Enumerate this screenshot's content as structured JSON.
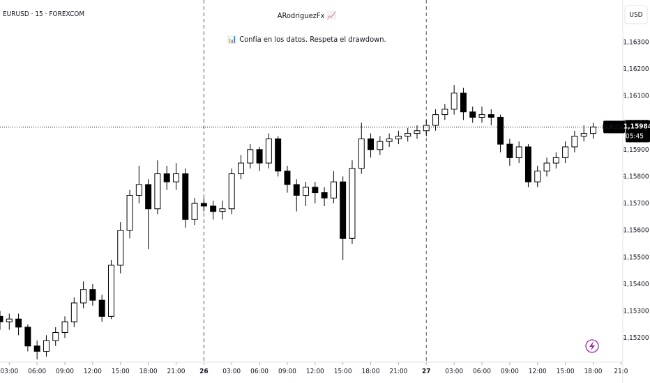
{
  "chart_data": {
    "type": "candlestick",
    "symbol": "EURUSD · 15 · FOREXCOM",
    "title": "ARodriguezFx 📈",
    "subtitle": "📊 Confía en los datos. Respeta el drawdown.",
    "currency": "USD",
    "last_price": {
      "value": 1.15984,
      "label": "1,15984",
      "name": "EURUSD",
      "countdown": "05:45"
    },
    "up_color": "#ffffff",
    "down_color": "#000000",
    "x": [
      2,
      3,
      4,
      5,
      6,
      7,
      8,
      9,
      10,
      11,
      12,
      13,
      14,
      15,
      16,
      17,
      18,
      19,
      20,
      21,
      22,
      23,
      24,
      25,
      26,
      27,
      28,
      29,
      30,
      31,
      32,
      33,
      34,
      35,
      36,
      37,
      38,
      39,
      40,
      41,
      42,
      43,
      44,
      45,
      46,
      47,
      48,
      49,
      50,
      51,
      52,
      53,
      54,
      55,
      56,
      57,
      58,
      59,
      60,
      61,
      62,
      63,
      64,
      65,
      66
    ],
    "open": [
      1.1528,
      1.1526,
      1.1527,
      1.1524,
      1.1517,
      1.1515,
      1.1519,
      1.1522,
      1.1526,
      1.1533,
      1.1538,
      1.1534,
      1.1528,
      1.1547,
      1.156,
      1.1573,
      1.1577,
      1.1568,
      1.1581,
      1.1578,
      1.1581,
      1.1564,
      1.157,
      1.1569,
      1.1567,
      1.1568,
      1.1581,
      1.1585,
      1.159,
      1.1585,
      1.1594,
      1.1582,
      1.1577,
      1.1573,
      1.1576,
      1.1574,
      1.1572,
      1.1578,
      1.1557,
      1.1583,
      1.1594,
      1.159,
      1.1593,
      1.1594,
      1.1595,
      1.1596,
      1.1597,
      1.1599,
      1.1603,
      1.1605,
      1.1611,
      1.1604,
      1.1602,
      1.1603,
      1.1602,
      1.1592,
      1.1587,
      1.1591,
      1.1578,
      1.1582,
      1.1585,
      1.1587,
      1.1591,
      1.1595,
      1.1596
    ],
    "high": [
      1.153,
      1.1529,
      1.1529,
      1.1525,
      1.1519,
      1.1521,
      1.1524,
      1.1528,
      1.1535,
      1.1541,
      1.154,
      1.1536,
      1.1549,
      1.1563,
      1.1575,
      1.1584,
      1.1579,
      1.1586,
      1.1584,
      1.1585,
      1.1583,
      1.1572,
      1.1572,
      1.1571,
      1.1571,
      1.1583,
      1.1588,
      1.1592,
      1.1591,
      1.1596,
      1.1595,
      1.1584,
      1.1579,
      1.1578,
      1.1578,
      1.1576,
      1.1582,
      1.158,
      1.1586,
      1.16,
      1.1596,
      1.1595,
      1.1596,
      1.1597,
      1.1598,
      1.1599,
      1.1601,
      1.1605,
      1.1607,
      1.1614,
      1.1613,
      1.1606,
      1.1606,
      1.1605,
      1.1603,
      1.1594,
      1.1593,
      1.1592,
      1.1584,
      1.1587,
      1.1589,
      1.1593,
      1.1597,
      1.1599,
      1.16
    ],
    "low": [
      1.1523,
      1.1523,
      1.1521,
      1.1515,
      1.1512,
      1.1513,
      1.1517,
      1.152,
      1.1524,
      1.1531,
      1.1532,
      1.1526,
      1.1527,
      1.1544,
      1.1557,
      1.157,
      1.1553,
      1.1566,
      1.1575,
      1.1575,
      1.1561,
      1.1562,
      1.1567,
      1.1564,
      1.1564,
      1.1566,
      1.1579,
      1.1583,
      1.1582,
      1.1583,
      1.158,
      1.1574,
      1.1567,
      1.1569,
      1.157,
      1.1569,
      1.157,
      1.1549,
      1.1555,
      1.1581,
      1.1587,
      1.1588,
      1.1591,
      1.1592,
      1.1593,
      1.1594,
      1.1595,
      1.1597,
      1.1601,
      1.1603,
      1.1601,
      1.16,
      1.16,
      1.1599,
      1.1589,
      1.1584,
      1.1585,
      1.1576,
      1.1576,
      1.158,
      1.1583,
      1.1585,
      1.1589,
      1.1593,
      1.1594
    ],
    "close": [
      1.1526,
      1.1527,
      1.1524,
      1.1517,
      1.1515,
      1.1519,
      1.1522,
      1.1526,
      1.1533,
      1.1538,
      1.1534,
      1.1528,
      1.1547,
      1.156,
      1.1573,
      1.1577,
      1.1568,
      1.1581,
      1.1578,
      1.1581,
      1.1564,
      1.157,
      1.1569,
      1.1567,
      1.1568,
      1.1581,
      1.1585,
      1.159,
      1.1585,
      1.1594,
      1.1582,
      1.1577,
      1.1573,
      1.1576,
      1.1574,
      1.1572,
      1.1578,
      1.1557,
      1.1583,
      1.1594,
      1.159,
      1.1593,
      1.1594,
      1.1595,
      1.1596,
      1.1597,
      1.1599,
      1.1603,
      1.1605,
      1.1611,
      1.1604,
      1.1602,
      1.1603,
      1.1602,
      1.1592,
      1.1587,
      1.1591,
      1.1578,
      1.1582,
      1.1585,
      1.1587,
      1.1591,
      1.1595,
      1.1596,
      1.15984
    ],
    "xlim": [
      2.0,
      69.2
    ],
    "xticks": [
      {
        "value": 3,
        "label": "03:00"
      },
      {
        "value": 6,
        "label": "06:00"
      },
      {
        "value": 9,
        "label": "09:00"
      },
      {
        "value": 12,
        "label": "12:00"
      },
      {
        "value": 15,
        "label": "15:00"
      },
      {
        "value": 18,
        "label": "18:00"
      },
      {
        "value": 21,
        "label": "21:00"
      },
      {
        "value": 24,
        "label": "26"
      },
      {
        "value": 27,
        "label": "03:00"
      },
      {
        "value": 30,
        "label": "06:00"
      },
      {
        "value": 33,
        "label": "09:00"
      },
      {
        "value": 36,
        "label": "12:00"
      },
      {
        "value": 39,
        "label": "15:00"
      },
      {
        "value": 42,
        "label": "18:00"
      },
      {
        "value": 45,
        "label": "21:00"
      },
      {
        "value": 48,
        "label": "27"
      },
      {
        "value": 51,
        "label": "03:00"
      },
      {
        "value": 54,
        "label": "06:00"
      },
      {
        "value": 57,
        "label": "09:00"
      },
      {
        "value": 60,
        "label": "12:00"
      },
      {
        "value": 63,
        "label": "15:00"
      },
      {
        "value": 66,
        "label": "18:00"
      },
      {
        "value": 69,
        "label": "21:0"
      }
    ],
    "ylim": [
      1.1511,
      1.16456
    ],
    "yticks": [
      {
        "value": 1.152,
        "label": "1,15200"
      },
      {
        "value": 1.153,
        "label": "1,15300"
      },
      {
        "value": 1.154,
        "label": "1,15400"
      },
      {
        "value": 1.155,
        "label": "1,15500"
      },
      {
        "value": 1.156,
        "label": "1,15600"
      },
      {
        "value": 1.157,
        "label": "1,15700"
      },
      {
        "value": 1.158,
        "label": "1,15800"
      },
      {
        "value": 1.159,
        "label": "1,15900"
      },
      {
        "value": 1.16,
        "label": "1,16000"
      },
      {
        "value": 1.161,
        "label": "1,16100"
      },
      {
        "value": 1.162,
        "label": "1,16200"
      },
      {
        "value": 1.163,
        "label": "1,16300"
      }
    ]
  }
}
